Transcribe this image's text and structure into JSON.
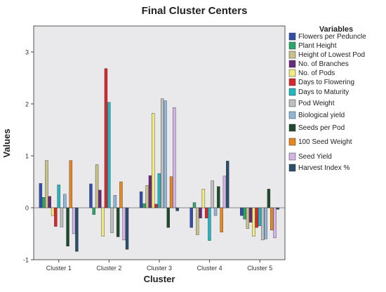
{
  "chart_data": {
    "type": "bar",
    "title": "Final Cluster Centers",
    "xlabel": "Cluster",
    "ylabel": "Values",
    "ylim": [
      -1,
      3.5
    ],
    "yticks": [
      -1,
      0,
      1,
      2,
      3
    ],
    "grid": false,
    "legend_title": "Variables",
    "legend_position": "right",
    "categories": [
      "Cluster 1",
      "Cluster 2",
      "Cluster 3",
      "Cluster 4",
      "Cluster 5"
    ],
    "series": [
      {
        "name": "Flowers per Peduncle",
        "color": "#2f4fa8",
        "values": [
          0.47,
          0.46,
          0.31,
          -0.38,
          -0.15
        ]
      },
      {
        "name": "Plant Height",
        "color": "#2aa86a",
        "values": [
          0.2,
          -0.13,
          0.08,
          0.1,
          -0.22
        ]
      },
      {
        "name": "Height of Lowest Pod",
        "color": "#c9c08a",
        "values": [
          0.91,
          0.83,
          0.43,
          -0.52,
          -0.4
        ]
      },
      {
        "name": "No. of Branches",
        "color": "#6a2a7a",
        "values": [
          0.22,
          0.34,
          0.62,
          -0.2,
          -0.28
        ]
      },
      {
        "name": "No. of Pods",
        "color": "#f0ea80",
        "values": [
          -0.15,
          -0.55,
          1.82,
          0.36,
          -0.55
        ]
      },
      {
        "name": "Days to Flowering",
        "color": "#d9262a",
        "values": [
          -0.36,
          2.68,
          0.07,
          -0.2,
          -0.38
        ]
      },
      {
        "name": "Days to Maturity",
        "color": "#22b6c0",
        "values": [
          0.44,
          2.03,
          0.66,
          -0.63,
          -0.35
        ]
      },
      {
        "name": "Pod Weight",
        "color": "#bfbfbf",
        "values": [
          -0.37,
          -0.48,
          2.1,
          0.52,
          -0.62
        ]
      },
      {
        "name": "Biological yield",
        "color": "#8fb6d8",
        "values": [
          0.26,
          0.24,
          2.06,
          -0.15,
          -0.6
        ]
      },
      {
        "name": "Seeds per Pod",
        "color": "#1f4a2e",
        "values": [
          -0.74,
          -0.56,
          -0.38,
          0.41,
          0.36
        ]
      },
      {
        "name": "100 Seed Weight",
        "color": "#e8861f",
        "values": [
          0.91,
          0.5,
          0.6,
          -0.47,
          -0.43
        ]
      },
      {
        "name": "Seed Yield",
        "color": "#d2b4e6",
        "values": [
          -0.5,
          -0.62,
          1.93,
          0.61,
          -0.58
        ]
      },
      {
        "name": "Harvest Index %",
        "color": "#2a4f6e",
        "values": [
          -0.84,
          -0.8,
          -0.06,
          0.9,
          -0.03
        ]
      }
    ]
  }
}
